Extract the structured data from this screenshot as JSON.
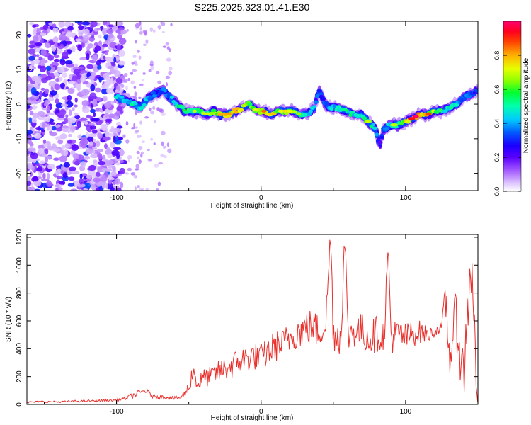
{
  "title": "S225.2025.323.01.41.E30",
  "chart_data": [
    {
      "type": "heatmap",
      "xlabel": "Height of straight line (km)",
      "ylabel": "Frequency (Hz)",
      "xlim": [
        -162,
        150
      ],
      "ylim": [
        -25,
        24
      ],
      "xticks": [
        -100,
        0,
        100
      ],
      "yticks": [
        -20,
        -10,
        0,
        10,
        20
      ],
      "colorbar": {
        "label": "Normalized spectral amplitude",
        "ticks": [
          "0.0",
          "0.2",
          "0.4",
          "0.6",
          "0.8"
        ],
        "range": [
          0,
          1
        ],
        "colors": [
          "#ffffff",
          "#c9a6ff",
          "#7b00ff",
          "#2200ff",
          "#0077ff",
          "#00e5ff",
          "#00ff55",
          "#aaff00",
          "#ffdd00",
          "#ff7700",
          "#ff0000",
          "#ff0066"
        ]
      },
      "ridge": {
        "x": [
          -100,
          -93,
          -88,
          -83,
          -78,
          -73,
          -68,
          -63,
          -58,
          -53,
          -48,
          -43,
          -38,
          -33,
          -28,
          -23,
          -18,
          -13,
          -8,
          -3,
          2,
          7,
          12,
          17,
          22,
          27,
          32,
          37,
          40,
          44,
          49,
          54,
          59,
          64,
          69,
          74,
          79,
          82,
          85,
          90,
          95,
          100,
          105,
          110,
          115,
          120,
          125,
          130,
          135,
          140,
          145,
          150
        ],
        "y": [
          2,
          1,
          0,
          -1,
          2,
          3,
          4,
          2,
          0,
          -2,
          -2,
          -2,
          -3,
          -2,
          -3,
          -3,
          -2,
          -1,
          0,
          -2,
          -2,
          -3,
          -2,
          -2,
          -2,
          -3,
          -3,
          -1,
          4,
          0,
          -1,
          -1,
          -2,
          -3,
          -3,
          -5,
          -7,
          -12,
          -7,
          -6,
          -6,
          -5,
          -4,
          -3,
          -3,
          -2,
          -2,
          -1,
          0,
          2,
          3,
          4
        ],
        "amplitude": [
          0.45,
          0.5,
          0.5,
          0.45,
          0.4,
          0.35,
          0.35,
          0.4,
          0.5,
          0.55,
          0.6,
          0.6,
          0.6,
          0.65,
          0.7,
          0.7,
          0.75,
          0.85,
          0.65,
          0.6,
          0.75,
          0.7,
          0.6,
          0.65,
          0.6,
          0.55,
          0.5,
          0.45,
          0.3,
          0.35,
          0.45,
          0.5,
          0.55,
          0.5,
          0.5,
          0.6,
          0.5,
          0.2,
          0.4,
          0.55,
          0.65,
          0.75,
          0.85,
          0.95,
          0.8,
          0.7,
          0.55,
          0.5,
          0.45,
          0.4,
          0.35,
          0.3
        ]
      },
      "noise_region": {
        "x": [
          -162,
          -95
        ],
        "amplitude_max": 0.3
      }
    },
    {
      "type": "line",
      "xlabel": "Height of straight line (km)",
      "ylabel": "SNR (10 * v/v)",
      "xlim": [
        -162,
        150
      ],
      "ylim": [
        0,
        1220
      ],
      "xticks": [
        -100,
        0,
        100
      ],
      "yticks": [
        0,
        200,
        400,
        600,
        800,
        1000,
        1200
      ],
      "color": "#e8302c",
      "series": {
        "x": [
          -162,
          -150,
          -140,
          -130,
          -120,
          -110,
          -100,
          -95,
          -90,
          -85,
          -80,
          -75,
          -70,
          -65,
          -60,
          -55,
          -50,
          -47,
          -44,
          -40,
          -35,
          -30,
          -25,
          -20,
          -15,
          -10,
          -5,
          0,
          5,
          10,
          15,
          20,
          25,
          30,
          35,
          40,
          45,
          48,
          50,
          55,
          58,
          60,
          65,
          70,
          75,
          80,
          85,
          88,
          90,
          95,
          100,
          105,
          110,
          115,
          120,
          125,
          128,
          130,
          135,
          140,
          145,
          148,
          150
        ],
        "y": [
          15,
          20,
          18,
          22,
          25,
          28,
          30,
          40,
          60,
          80,
          100,
          60,
          55,
          50,
          45,
          50,
          120,
          250,
          140,
          190,
          200,
          230,
          260,
          280,
          310,
          330,
          350,
          330,
          380,
          420,
          430,
          480,
          520,
          540,
          560,
          520,
          600,
          1230,
          520,
          480,
          1190,
          500,
          540,
          520,
          480,
          510,
          490,
          1110,
          480,
          500,
          480,
          510,
          520,
          500,
          520,
          560,
          760,
          350,
          620,
          180,
          1050,
          420,
          100
        ],
        "spread": [
          10,
          12,
          10,
          12,
          12,
          14,
          15,
          20,
          30,
          40,
          35,
          25,
          25,
          20,
          20,
          25,
          80,
          120,
          100,
          110,
          120,
          140,
          150,
          160,
          170,
          170,
          170,
          170,
          180,
          190,
          190,
          200,
          200,
          220,
          220,
          220,
          220,
          240,
          240,
          240,
          240,
          220,
          220,
          220,
          220,
          220,
          210,
          210,
          200,
          200,
          180,
          160,
          140,
          100,
          60,
          60,
          300,
          320,
          350,
          380,
          400,
          400,
          380
        ]
      }
    }
  ]
}
